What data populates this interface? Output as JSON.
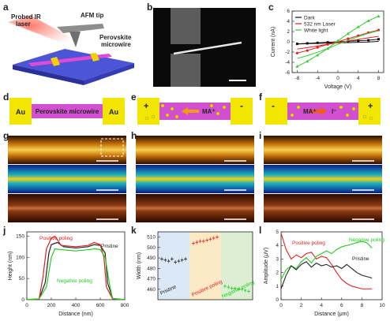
{
  "panel_letters": [
    "a",
    "b",
    "c",
    "d",
    "e",
    "f",
    "g",
    "h",
    "i",
    "j",
    "k",
    "l"
  ],
  "panel_a": {
    "ir_laser_label_line1": "Probed IR",
    "ir_laser_label_line2": "laser",
    "afm_tip_label": "AFM tip",
    "microwire_label_line1": "Perovskite",
    "microwire_label_line2": "microwire"
  },
  "panel_d": {
    "left_electrode": "Au",
    "right_electrode": "Au",
    "wire": "Perovskite microwire"
  },
  "panel_e": {
    "left_sign": "+",
    "right_sign": "-",
    "ion_label": "MA⁺"
  },
  "panel_f": {
    "left_sign": "-",
    "right_sign": "+",
    "ion_label_1": "MA⁺",
    "ion_label_2": "I⁻"
  },
  "colors": {
    "electrode": "#f2e600",
    "wire": "#d24fd2",
    "dark": "#111111",
    "laser": "#e02020",
    "white_light": "#33cc33",
    "pristine": "#222222",
    "positive": "#e02020",
    "negative": "#22cc22"
  },
  "chart_data": [
    {
      "panel": "c",
      "type": "scatter",
      "xlabel": "Voltage (V)",
      "ylabel": "Current (nA)",
      "xlim": [
        -9,
        9
      ],
      "ylim": [
        -6,
        6
      ],
      "xticks": [
        "-8",
        "-4",
        "0",
        "4",
        "8"
      ],
      "yticks": [
        "-6",
        "-4",
        "-2",
        "0",
        "2",
        "4",
        "6"
      ],
      "legend_position": "top-left",
      "series": [
        {
          "name": "Dark",
          "x": [
            -8,
            -6,
            -4,
            -2,
            0,
            2,
            4,
            6,
            8
          ],
          "y": [
            -0.4,
            -0.3,
            -0.2,
            -0.1,
            0,
            0.1,
            0.2,
            0.3,
            0.5
          ]
        },
        {
          "name": "532 nm Laser",
          "x": [
            -8,
            -6,
            -4,
            -2,
            0,
            2,
            4,
            6,
            8
          ],
          "y": [
            -2.2,
            -1.7,
            -1.1,
            -0.5,
            0,
            0.6,
            1.2,
            1.8,
            2.3
          ]
        },
        {
          "name": "White light",
          "x": [
            -8,
            -6,
            -4,
            -2,
            0,
            2,
            4,
            6,
            8
          ],
          "y": [
            -4.8,
            -3.8,
            -2.6,
            -1.3,
            0.2,
            1.6,
            2.9,
            4.1,
            5.0
          ]
        }
      ]
    },
    {
      "panel": "j",
      "type": "line",
      "xlabel": "Distance (nm)",
      "ylabel": "Height (nm)",
      "xlim": [
        0,
        800
      ],
      "ylim": [
        0,
        160
      ],
      "xticks": [
        "0",
        "200",
        "400",
        "600",
        "800"
      ],
      "yticks": [
        "0",
        "50",
        "100",
        "150"
      ],
      "annotations": [
        "Positive poling",
        "Pristine",
        "Negative poling"
      ],
      "series": [
        {
          "name": "Pristine",
          "x": [
            0,
            100,
            150,
            180,
            200,
            250,
            300,
            400,
            500,
            550,
            600,
            640,
            660,
            700,
            800
          ],
          "y": [
            0,
            2,
            40,
            110,
            130,
            135,
            125,
            122,
            125,
            130,
            128,
            110,
            40,
            3,
            0
          ]
        },
        {
          "name": "Positive poling",
          "x": [
            0,
            100,
            130,
            160,
            200,
            230,
            280,
            400,
            500,
            550,
            600,
            630,
            650,
            700,
            800
          ],
          "y": [
            0,
            2,
            50,
            120,
            145,
            150,
            128,
            125,
            128,
            135,
            130,
            100,
            30,
            2,
            0
          ]
        },
        {
          "name": "Negative poling",
          "x": [
            0,
            100,
            160,
            200,
            230,
            280,
            400,
            500,
            560,
            600,
            640,
            680,
            700,
            800
          ],
          "y": [
            0,
            2,
            30,
            100,
            120,
            118,
            115,
            118,
            120,
            118,
            100,
            30,
            3,
            0
          ]
        }
      ]
    },
    {
      "panel": "k",
      "type": "scatter",
      "ylabel": "Width (nm)",
      "ylim": [
        450,
        515
      ],
      "yticks": [
        "460",
        "470",
        "480",
        "490",
        "500",
        "510"
      ],
      "group_labels": [
        "Pristine",
        "Positive poling",
        "Negative poling"
      ],
      "series": [
        {
          "name": "Pristine",
          "values": [
            489,
            488,
            487,
            489,
            486,
            487,
            488,
            489
          ]
        },
        {
          "name": "Positive poling",
          "values": [
            504,
            505,
            506,
            506,
            507,
            508,
            509,
            510
          ]
        },
        {
          "name": "Negative poling",
          "values": [
            463,
            462,
            461,
            461,
            460,
            460,
            459,
            458
          ]
        }
      ]
    },
    {
      "panel": "l",
      "type": "line",
      "xlabel": "Distance (μm)",
      "ylabel": "Amplitude (μV)",
      "xlim": [
        0,
        10
      ],
      "ylim": [
        0,
        5
      ],
      "xticks": [
        "0",
        "2",
        "4",
        "6",
        "8",
        "10"
      ],
      "yticks": [
        "0",
        "1",
        "2",
        "3",
        "4",
        "5"
      ],
      "annotations": [
        "Positive poling",
        "Negative poling",
        "Pristine"
      ],
      "series": [
        {
          "name": "Positive poling",
          "x": [
            0,
            0.5,
            1,
            1.5,
            2,
            2.5,
            3,
            3.5,
            4,
            4.5,
            5,
            5.5,
            6,
            6.5,
            7,
            7.5,
            8,
            8.5,
            9
          ],
          "y": [
            4.9,
            3.7,
            3.0,
            3.3,
            3.1,
            3.4,
            3.5,
            3.0,
            3.2,
            3.1,
            2.6,
            2.0,
            1.5,
            1.2,
            1.0,
            0.9,
            0.8,
            0.8,
            0.8
          ]
        },
        {
          "name": "Negative poling",
          "x": [
            0,
            0.5,
            1,
            1.5,
            2,
            2.5,
            3,
            3.5,
            4,
            4.5,
            5,
            5.5,
            6,
            6.5,
            7,
            7.5,
            8,
            8.5,
            9
          ],
          "y": [
            1.5,
            2.2,
            2.5,
            2.3,
            2.8,
            3.1,
            2.7,
            3.2,
            3.4,
            3.6,
            3.4,
            3.7,
            3.9,
            4.0,
            4.1,
            4.2,
            4.3,
            4.2,
            3.8
          ]
        },
        {
          "name": "Pristine",
          "x": [
            0,
            0.5,
            1,
            1.5,
            2,
            2.5,
            3,
            3.5,
            4,
            4.5,
            5,
            5.5,
            6,
            6.5,
            7,
            7.5,
            8,
            8.5,
            9
          ],
          "y": [
            0.8,
            1.8,
            2.5,
            2.2,
            2.6,
            2.8,
            2.4,
            2.7,
            2.5,
            2.6,
            2.4,
            2.5,
            2.3,
            2.6,
            2.3,
            2.0,
            1.8,
            1.7,
            1.6
          ]
        }
      ]
    }
  ]
}
